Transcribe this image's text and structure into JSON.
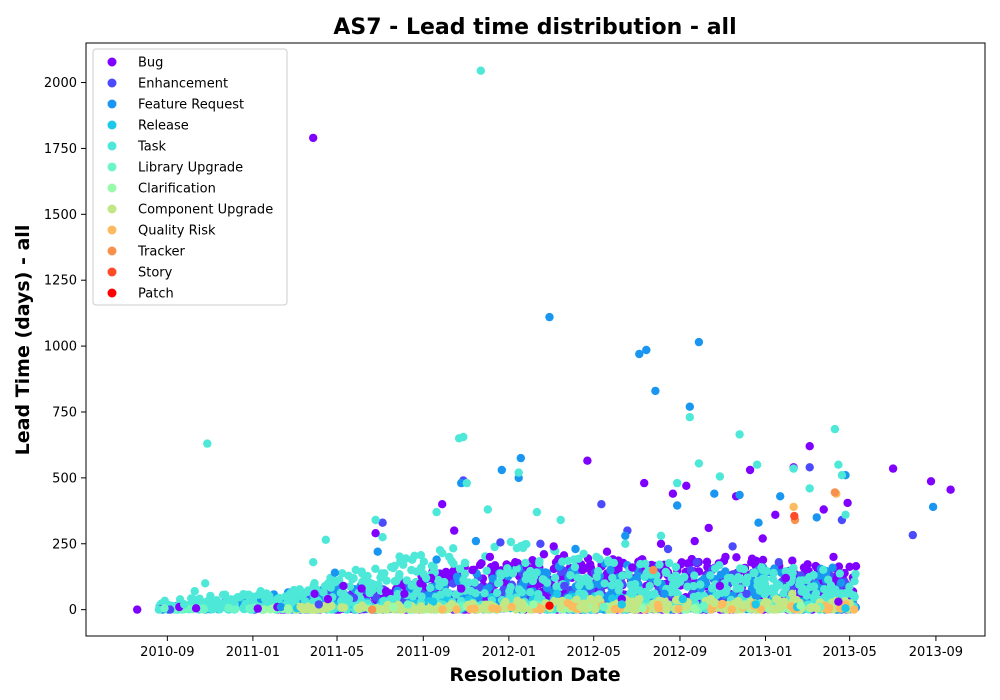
{
  "chart_data": {
    "type": "scatter",
    "title": "AS7 - Lead time distribution - all",
    "xlabel": "Resolution Date",
    "ylabel": "Lead Time (days) - all",
    "xlim": [
      "2010-05-08",
      "2013-11-10"
    ],
    "ylim": [
      -100,
      2150
    ],
    "x_ticks": [
      "2010-09",
      "2011-01",
      "2011-05",
      "2011-09",
      "2012-01",
      "2012-05",
      "2012-09",
      "2013-01",
      "2013-05",
      "2013-09"
    ],
    "y_ticks": [
      0,
      250,
      500,
      750,
      1000,
      1250,
      1500,
      1750,
      2000
    ],
    "grid": false,
    "legend_position": "top-left",
    "series": [
      {
        "name": "Bug",
        "color": "#8000ff",
        "points": [
          [
            "2010-07-20",
            0
          ],
          [
            "2010-08-22",
            2
          ],
          [
            "2010-09-18",
            10
          ],
          [
            "2010-10-12",
            5
          ],
          [
            "2011-01-08",
            4
          ],
          [
            "2011-02-05",
            10
          ],
          [
            "2011-03-28",
            1790
          ],
          [
            "2011-03-30",
            60
          ],
          [
            "2011-04-18",
            40
          ],
          [
            "2011-05-10",
            90
          ],
          [
            "2011-06-05",
            80
          ],
          [
            "2011-06-25",
            290
          ],
          [
            "2011-07-10",
            70
          ],
          [
            "2011-08-05",
            60
          ],
          [
            "2011-08-28",
            100
          ],
          [
            "2011-09-12",
            120
          ],
          [
            "2011-09-28",
            400
          ],
          [
            "2011-10-15",
            300
          ],
          [
            "2011-10-25",
            80
          ],
          [
            "2011-11-10",
            150
          ],
          [
            "2011-12-05",
            200
          ],
          [
            "2012-01-10",
            180
          ],
          [
            "2012-02-20",
            210
          ],
          [
            "2012-03-05",
            240
          ],
          [
            "2012-04-15",
            150
          ],
          [
            "2012-04-22",
            565
          ],
          [
            "2012-05-20",
            220
          ],
          [
            "2012-06-25",
            160
          ],
          [
            "2012-07-12",
            480
          ],
          [
            "2012-08-05",
            250
          ],
          [
            "2012-08-22",
            440
          ],
          [
            "2012-09-10",
            470
          ],
          [
            "2012-09-22",
            260
          ],
          [
            "2012-10-12",
            310
          ],
          [
            "2012-11-05",
            200
          ],
          [
            "2012-11-20",
            430
          ],
          [
            "2012-12-10",
            530
          ],
          [
            "2012-12-28",
            270
          ],
          [
            "2013-01-15",
            360
          ],
          [
            "2013-02-10",
            540
          ],
          [
            "2013-03-05",
            620
          ],
          [
            "2013-03-25",
            380
          ],
          [
            "2013-04-08",
            200
          ],
          [
            "2013-04-28",
            405
          ],
          [
            "2013-05-10",
            165
          ],
          [
            "2013-07-02",
            535
          ],
          [
            "2013-08-25",
            487
          ],
          [
            "2013-09-22",
            455
          ],
          [
            "2012-06-10",
            40
          ],
          [
            "2012-10-28",
            90
          ],
          [
            "2013-01-30",
            120
          ],
          [
            "2013-04-15",
            30
          ]
        ]
      },
      {
        "name": "Enhancement",
        "color": "#4b4afc",
        "points": [
          [
            "2010-09-05",
            0
          ],
          [
            "2011-04-05",
            20
          ],
          [
            "2011-05-25",
            45
          ],
          [
            "2011-07-05",
            330
          ],
          [
            "2011-10-28",
            490
          ],
          [
            "2011-12-20",
            255
          ],
          [
            "2012-02-15",
            250
          ],
          [
            "2012-05-12",
            400
          ],
          [
            "2012-06-18",
            300
          ],
          [
            "2012-08-15",
            230
          ],
          [
            "2012-09-25",
            180
          ],
          [
            "2012-11-15",
            240
          ],
          [
            "2013-01-20",
            180
          ],
          [
            "2013-03-05",
            540
          ],
          [
            "2013-04-20",
            340
          ],
          [
            "2013-07-30",
            283
          ],
          [
            "2012-03-20",
            90
          ],
          [
            "2012-12-05",
            60
          ]
        ]
      },
      {
        "name": "Feature Request",
        "color": "#1996f2",
        "points": [
          [
            "2010-08-25",
            0
          ],
          [
            "2011-02-10",
            10
          ],
          [
            "2011-04-28",
            140
          ],
          [
            "2011-06-28",
            220
          ],
          [
            "2011-09-20",
            190
          ],
          [
            "2011-10-25",
            480
          ],
          [
            "2011-11-15",
            260
          ],
          [
            "2011-12-22",
            530
          ],
          [
            "2012-01-15",
            500
          ],
          [
            "2012-01-18",
            575
          ],
          [
            "2012-02-28",
            1110
          ],
          [
            "2012-04-05",
            230
          ],
          [
            "2012-06-15",
            280
          ],
          [
            "2012-07-05",
            970
          ],
          [
            "2012-07-15",
            985
          ],
          [
            "2012-07-28",
            830
          ],
          [
            "2012-08-28",
            395
          ],
          [
            "2012-09-15",
            770
          ],
          [
            "2012-09-28",
            1015
          ],
          [
            "2012-10-20",
            440
          ],
          [
            "2012-11-25",
            435
          ],
          [
            "2012-12-22",
            330
          ],
          [
            "2013-01-22",
            430
          ],
          [
            "2013-03-15",
            350
          ],
          [
            "2013-04-25",
            510
          ],
          [
            "2013-08-28",
            390
          ],
          [
            "2012-05-25",
            150
          ],
          [
            "2012-08-10",
            60
          ]
        ]
      },
      {
        "name": "Release",
        "color": "#1cc8ea",
        "points": [
          [
            "2011-03-05",
            5
          ],
          [
            "2011-09-15",
            30
          ],
          [
            "2012-03-10",
            60
          ],
          [
            "2012-06-10",
            20
          ],
          [
            "2012-09-05",
            40
          ],
          [
            "2012-12-18",
            20
          ],
          [
            "2013-02-15",
            10
          ],
          [
            "2013-04-25",
            5
          ]
        ]
      },
      {
        "name": "Task",
        "color": "#4de8d8",
        "points": [
          [
            "2010-08-20",
            0
          ],
          [
            "2010-09-25",
            20
          ],
          [
            "2010-10-10",
            70
          ],
          [
            "2010-10-25",
            100
          ],
          [
            "2010-10-28",
            630
          ],
          [
            "2010-11-15",
            10
          ],
          [
            "2010-12-05",
            30
          ],
          [
            "2011-01-12",
            70
          ],
          [
            "2011-03-28",
            180
          ],
          [
            "2011-04-15",
            265
          ],
          [
            "2011-05-18",
            40
          ],
          [
            "2011-06-25",
            340
          ],
          [
            "2011-07-05",
            275
          ],
          [
            "2011-08-15",
            150
          ],
          [
            "2011-09-05",
            120
          ],
          [
            "2011-09-20",
            370
          ],
          [
            "2011-10-08",
            200
          ],
          [
            "2011-10-22",
            650
          ],
          [
            "2011-10-28",
            655
          ],
          [
            "2011-11-02",
            480
          ],
          [
            "2011-11-22",
            2045
          ],
          [
            "2011-12-02",
            380
          ],
          [
            "2012-01-15",
            520
          ],
          [
            "2012-02-10",
            370
          ],
          [
            "2012-03-15",
            340
          ],
          [
            "2012-05-05",
            200
          ],
          [
            "2012-06-15",
            250
          ],
          [
            "2012-08-05",
            280
          ],
          [
            "2012-08-28",
            480
          ],
          [
            "2012-09-15",
            730
          ],
          [
            "2012-09-28",
            555
          ],
          [
            "2012-10-28",
            505
          ],
          [
            "2012-11-25",
            665
          ],
          [
            "2012-12-20",
            550
          ],
          [
            "2013-02-10",
            535
          ],
          [
            "2013-03-05",
            460
          ],
          [
            "2013-04-10",
            685
          ],
          [
            "2013-04-15",
            550
          ],
          [
            "2013-04-20",
            510
          ],
          [
            "2013-04-25",
            360
          ],
          [
            "2012-04-20",
            120
          ],
          [
            "2012-07-20",
            90
          ],
          [
            "2013-01-10",
            80
          ]
        ]
      },
      {
        "name": "Library Upgrade",
        "color": "#6cf5c5",
        "points": [
          [
            "2010-08-28",
            5
          ],
          [
            "2011-08-10",
            20
          ],
          [
            "2012-05-15",
            10
          ],
          [
            "2012-10-05",
            15
          ],
          [
            "2013-03-20",
            10
          ]
        ]
      },
      {
        "name": "Clarification",
        "color": "#98fbaa",
        "points": [
          [
            "2011-02-20",
            5
          ],
          [
            "2011-07-20",
            10
          ],
          [
            "2012-02-05",
            20
          ],
          [
            "2012-07-10",
            5
          ],
          [
            "2013-02-20",
            15
          ]
        ]
      },
      {
        "name": "Component Upgrade",
        "color": "#c2e885",
        "points": [
          [
            "2011-03-10",
            10
          ],
          [
            "2011-09-10",
            5
          ],
          [
            "2012-01-20",
            25
          ],
          [
            "2012-04-12",
            10
          ],
          [
            "2012-06-25",
            30
          ],
          [
            "2012-08-15",
            20
          ],
          [
            "2012-10-20",
            25
          ],
          [
            "2012-11-30",
            15
          ],
          [
            "2013-01-28",
            30
          ],
          [
            "2013-02-08",
            60
          ],
          [
            "2013-03-15",
            5
          ]
        ]
      },
      {
        "name": "Quality Risk",
        "color": "#fcbb5f",
        "points": [
          [
            "2012-01-05",
            10
          ],
          [
            "2012-03-25",
            25
          ],
          [
            "2013-02-10",
            390
          ],
          [
            "2013-04-12",
            440
          ]
        ]
      },
      {
        "name": "Tracker",
        "color": "#f7914d",
        "points": [
          [
            "2011-06-20",
            0
          ],
          [
            "2012-07-25",
            150
          ],
          [
            "2013-02-12",
            340
          ],
          [
            "2013-04-10",
            445
          ]
        ]
      },
      {
        "name": "Story",
        "color": "#fe4a29",
        "points": [
          [
            "2013-02-11",
            355
          ]
        ]
      },
      {
        "name": "Patch",
        "color": "#ff0000",
        "points": [
          [
            "2012-02-28",
            15
          ]
        ]
      }
    ],
    "dense_bands": [
      {
        "series": "Bug",
        "start": "2011-02-01",
        "end": "2013-05-10",
        "ymax_profile": [
          [
            0,
            20
          ],
          [
            0.1,
            60
          ],
          [
            0.2,
            110
          ],
          [
            0.35,
            180
          ],
          [
            0.5,
            210
          ],
          [
            0.65,
            190
          ],
          [
            0.8,
            200
          ],
          [
            1.0,
            170
          ]
        ],
        "count": 900
      },
      {
        "series": "Enhancement",
        "start": "2011-01-01",
        "end": "2013-05-10",
        "ymax_profile": [
          [
            0,
            20
          ],
          [
            0.3,
            120
          ],
          [
            0.6,
            160
          ],
          [
            1.0,
            140
          ]
        ],
        "count": 260
      },
      {
        "series": "Feature Request",
        "start": "2010-08-20",
        "end": "2013-05-10",
        "ymax_profile": [
          [
            0,
            10
          ],
          [
            0.3,
            100
          ],
          [
            0.6,
            180
          ],
          [
            1.0,
            160
          ]
        ],
        "count": 320
      },
      {
        "series": "Release",
        "start": "2011-02-01",
        "end": "2013-05-10",
        "ymax_profile": [
          [
            0,
            10
          ],
          [
            0.4,
            60
          ],
          [
            1.0,
            40
          ]
        ],
        "count": 120
      },
      {
        "series": "Task",
        "start": "2010-08-20",
        "end": "2013-05-10",
        "ymax_profile": [
          [
            0,
            40
          ],
          [
            0.2,
            80
          ],
          [
            0.35,
            220
          ],
          [
            0.5,
            260
          ],
          [
            0.7,
            180
          ],
          [
            1.0,
            150
          ]
        ],
        "count": 700
      },
      {
        "series": "Library Upgrade",
        "start": "2010-08-20",
        "end": "2013-05-10",
        "ymax_profile": [
          [
            0,
            5
          ],
          [
            1.0,
            30
          ]
        ],
        "count": 80
      },
      {
        "series": "Clarification",
        "start": "2011-01-01",
        "end": "2013-05-10",
        "ymax_profile": [
          [
            0,
            5
          ],
          [
            1.0,
            25
          ]
        ],
        "count": 70
      },
      {
        "series": "Component Upgrade",
        "start": "2011-03-01",
        "end": "2013-05-10",
        "ymax_profile": [
          [
            0,
            10
          ],
          [
            0.5,
            40
          ],
          [
            1.0,
            45
          ]
        ],
        "count": 220
      },
      {
        "series": "Quality Risk",
        "start": "2011-09-01",
        "end": "2013-05-10",
        "ymax_profile": [
          [
            0,
            5
          ],
          [
            1.0,
            30
          ]
        ],
        "count": 40
      }
    ]
  }
}
